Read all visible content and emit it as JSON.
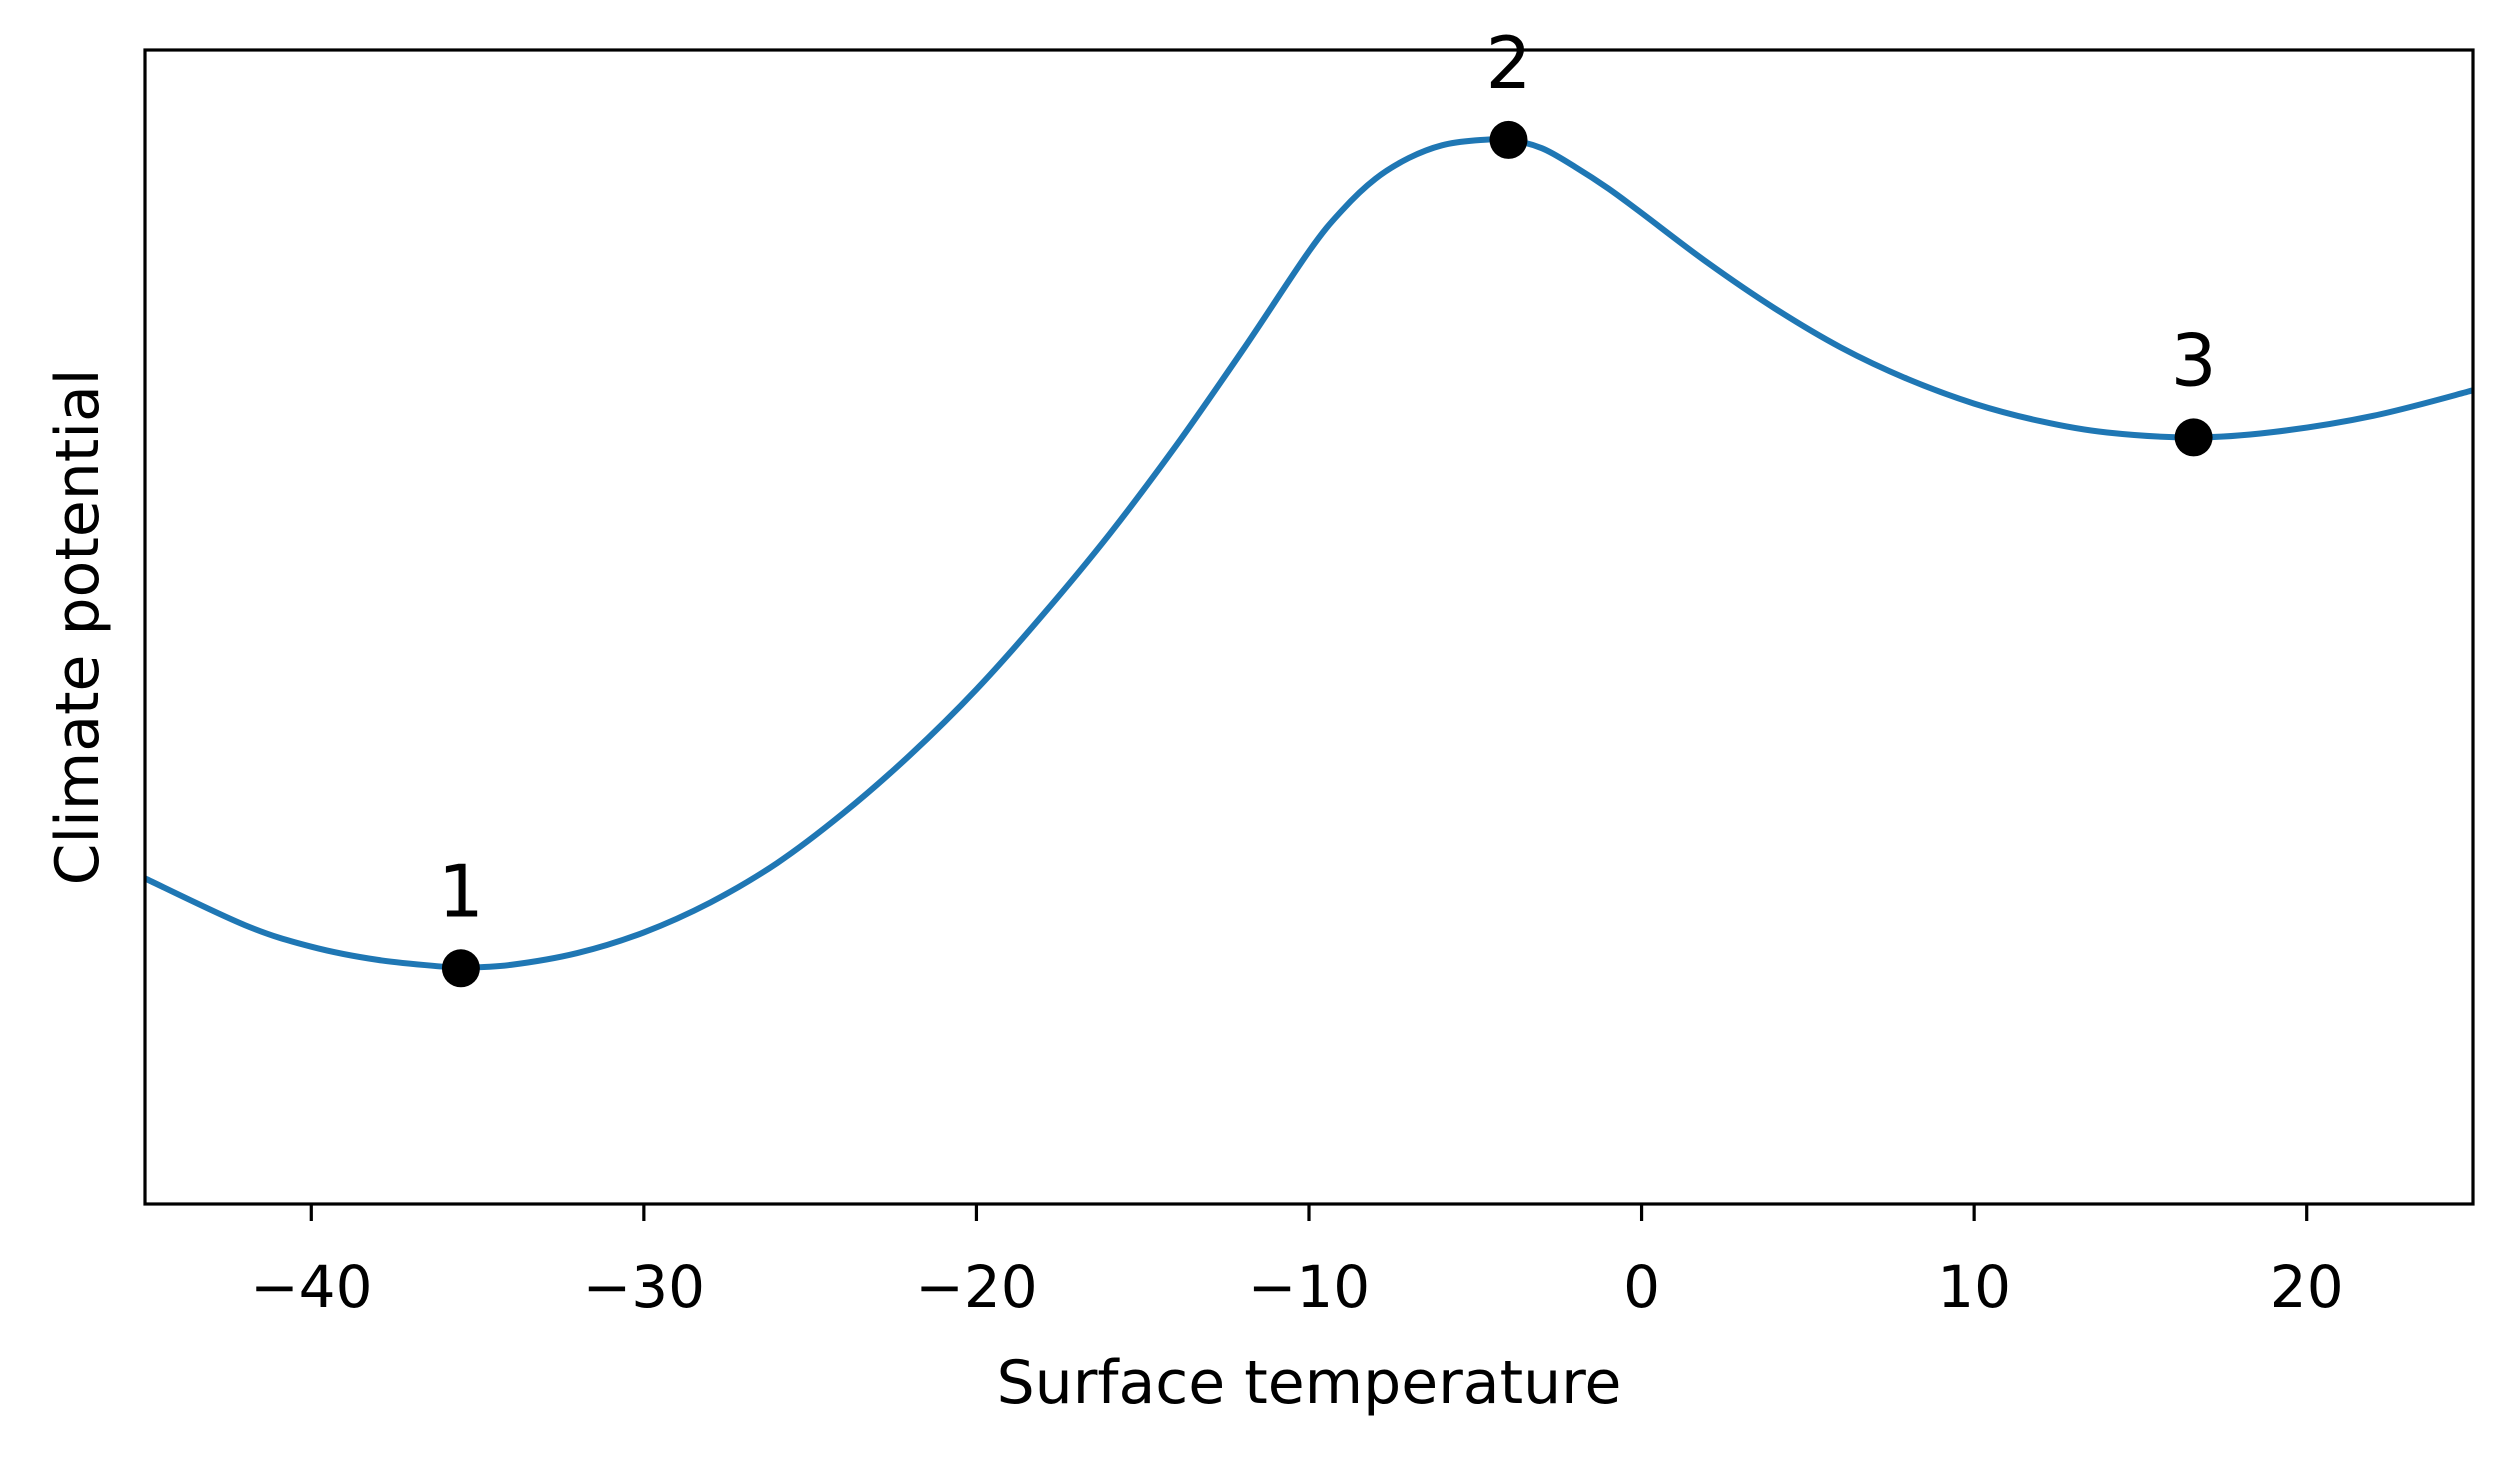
{
  "chart_data": {
    "type": "line",
    "title": "",
    "xlabel": "Surface temperature",
    "ylabel": "Climate potential",
    "xlim": [
      -45,
      25
    ],
    "ylim": [
      -0.05,
      1.125
    ],
    "xticks": [
      -40,
      -30,
      -20,
      -10,
      0,
      10,
      20
    ],
    "xtick_labels": [
      "−40",
      "−30",
      "−20",
      "−10",
      "0",
      "10",
      "20"
    ],
    "yticks_shown": false,
    "grid": false,
    "legend": "none",
    "series": [
      {
        "color": "#1f77b4",
        "x": [
          -45,
          -42,
          -40,
          -38,
          -36,
          -35.5,
          -34,
          -32,
          -30,
          -28,
          -26,
          -24,
          -22,
          -20,
          -18,
          -16,
          -14,
          -12,
          -10,
          -9,
          -8,
          -7,
          -6,
          -5,
          -4,
          -3,
          -2,
          -1,
          0,
          2,
          4,
          6,
          8,
          10,
          12,
          14,
          16.6,
          19,
          22,
          25
        ],
        "y": [
          0.2815,
          0.234,
          0.212,
          0.1985,
          0.1915,
          0.1905,
          0.1935,
          0.2055,
          0.2265,
          0.257,
          0.297,
          0.348,
          0.407,
          0.474,
          0.55,
          0.632,
          0.722,
          0.819,
          0.92,
          0.962,
          0.994,
          1.015,
          1.028,
          1.033,
          1.0335,
          1.025,
          1.006,
          0.984,
          0.959,
          0.908,
          0.862,
          0.822,
          0.79,
          0.765,
          0.747,
          0.7355,
          0.7305,
          0.736,
          0.7525,
          0.7785
        ]
      }
    ],
    "points": [
      {
        "label": "1",
        "x": -35.5,
        "y": 0.19,
        "color": "#000000"
      },
      {
        "label": "2",
        "x": -4,
        "y": 1.0335,
        "color": "#000000"
      },
      {
        "label": "3",
        "x": 16.6,
        "y": 0.7305,
        "color": "#000000"
      }
    ]
  }
}
